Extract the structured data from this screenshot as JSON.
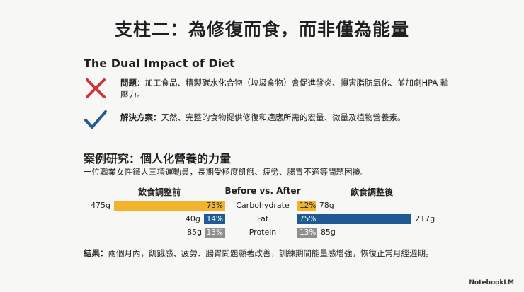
{
  "title": "支柱二：為修復而食，而非僅為能量",
  "dual_impact": {
    "heading": "The Dual Impact of Diet",
    "problem": {
      "lead": "問題：",
      "text": "加工食品、精製碳水化合物（垃圾食物）會促進發炎、損害脂肪氧化、並加劇HPA 軸壓力。",
      "icon": "red-x-icon",
      "color": "#c9353a"
    },
    "solution": {
      "lead": "解決方案：",
      "text": "天然、完整的食物提供修復和適應所需的宏量、微量及植物營養素。",
      "icon": "blue-checkmark-icon",
      "color": "#1f5a92"
    }
  },
  "case_study": {
    "heading": "案例研究：個人化營養的力量",
    "description": "一位職業女性鐵人三項運動員，長期受極度飢餓、疲勞、腸胃不適等問題困擾。",
    "result_lead": "結果：",
    "result_text": "兩個月內，飢餓感、疲勞、腸胃問題顯著改善，訓練期間能量感增強，恢復正常月經週期。"
  },
  "chart_data": {
    "type": "bar",
    "left_header": "飲食調整前",
    "middle_header": "Before vs. After",
    "right_header": "飲食調整後",
    "categories": [
      "Carbohydrate",
      "Fat",
      "Protein"
    ],
    "series": [
      {
        "name": "飲食調整前",
        "grams": [
          475,
          40,
          85
        ],
        "percent_labels": [
          "73%",
          "14%",
          "13%"
        ],
        "percent": [
          73,
          14,
          13
        ]
      },
      {
        "name": "飲食調整後",
        "grams": [
          78,
          217,
          85
        ],
        "percent_labels": [
          "12%",
          "75%",
          "13%"
        ],
        "percent": [
          12,
          75,
          13
        ]
      }
    ],
    "gram_labels_before": [
      "475g",
      "40g",
      "85g"
    ],
    "gram_labels_after": [
      "78g",
      "217g",
      "85g"
    ],
    "colors": {
      "carbohydrate": "#f2b42c",
      "fat": "#1f5a92",
      "protein": "#8f8f8f"
    }
  },
  "brand": "NotebookLM"
}
